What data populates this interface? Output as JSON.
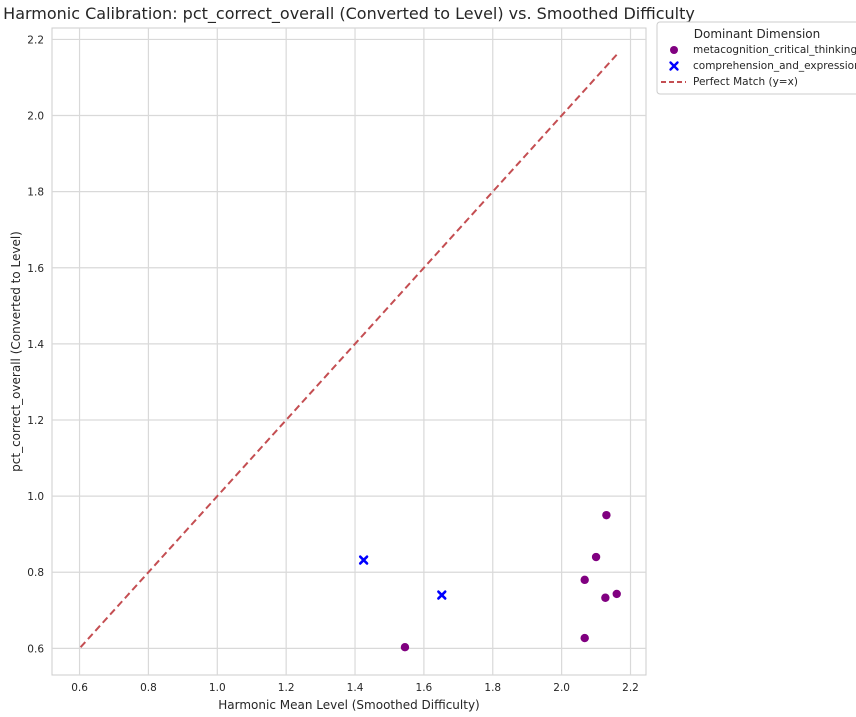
{
  "chart_data": {
    "type": "scatter",
    "title": "Harmonic Calibration: pct_correct_overall (Converted to Level) vs. Smoothed Difficulty",
    "xlabel": "Harmonic Mean Level (Smoothed Difficulty)",
    "ylabel": "pct_correct_overall (Converted to Level)",
    "xlim": [
      0.52,
      2.245
    ],
    "ylim": [
      0.53,
      2.23
    ],
    "xticks": [
      0.6,
      0.8,
      1.0,
      1.2,
      1.4,
      1.6,
      1.8,
      2.0,
      2.2
    ],
    "yticks": [
      0.6,
      0.8,
      1.0,
      1.2,
      1.4,
      1.6,
      1.8,
      2.0,
      2.2
    ],
    "tick_labels_x": [
      "0.6",
      "0.8",
      "1.0",
      "1.2",
      "1.4",
      "1.6",
      "1.8",
      "2.0",
      "2.2"
    ],
    "tick_labels_y": [
      "0.6",
      "0.8",
      "1.0",
      "1.2",
      "1.4",
      "1.6",
      "1.8",
      "2.0",
      "2.2"
    ],
    "grid": true,
    "legend": {
      "title": "Dominant Dimension",
      "placement": "outside-top-right",
      "entries": [
        "metacognition_critical_thinking",
        "comprehension_and_expression",
        "Perfect Match (y=x)"
      ]
    },
    "series": [
      {
        "name": "metacognition_critical_thinking",
        "marker": "circle",
        "color": "#800080",
        "points": [
          {
            "x": 1.545,
            "y": 0.603
          },
          {
            "x": 2.067,
            "y": 0.627
          },
          {
            "x": 2.067,
            "y": 0.78
          },
          {
            "x": 2.1,
            "y": 0.84
          },
          {
            "x": 2.127,
            "y": 0.733
          },
          {
            "x": 2.13,
            "y": 0.95
          },
          {
            "x": 2.16,
            "y": 0.743
          }
        ]
      },
      {
        "name": "comprehension_and_expression",
        "marker": "x",
        "color": "#0000ff",
        "points": [
          {
            "x": 1.425,
            "y": 0.832
          },
          {
            "x": 1.652,
            "y": 0.74
          }
        ]
      }
    ],
    "reference_line": {
      "name": "Perfect Match (y=x)",
      "style": "dashed",
      "color": "#c44e52",
      "x": [
        0.603,
        2.16
      ],
      "y": [
        0.603,
        2.16
      ]
    }
  }
}
